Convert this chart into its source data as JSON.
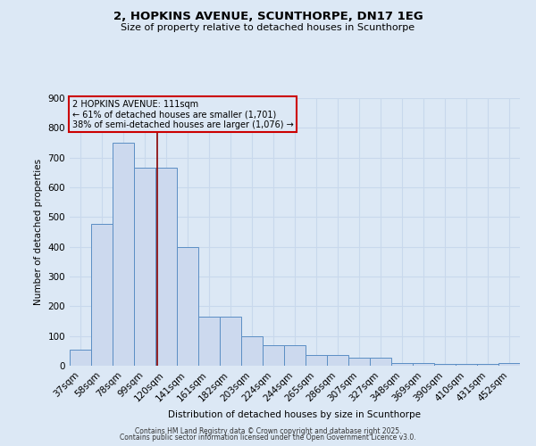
{
  "title": "2, HOPKINS AVENUE, SCUNTHORPE, DN17 1EG",
  "subtitle": "Size of property relative to detached houses in Scunthorpe",
  "xlabel": "Distribution of detached houses by size in Scunthorpe",
  "ylabel": "Number of detached properties",
  "categories": [
    "37sqm",
    "58sqm",
    "78sqm",
    "99sqm",
    "120sqm",
    "141sqm",
    "161sqm",
    "182sqm",
    "203sqm",
    "224sqm",
    "244sqm",
    "265sqm",
    "286sqm",
    "307sqm",
    "327sqm",
    "348sqm",
    "369sqm",
    "390sqm",
    "410sqm",
    "431sqm",
    "452sqm"
  ],
  "values": [
    55,
    478,
    750,
    665,
    665,
    400,
    165,
    165,
    100,
    70,
    70,
    35,
    35,
    28,
    28,
    10,
    10,
    7,
    7,
    7,
    10
  ],
  "bar_color": "#ccd9ee",
  "bar_edge_color": "#5b8ec4",
  "background_color": "#dce8f5",
  "grid_color": "#c8d8ec",
  "vline_x_index": 3.57,
  "vline_color": "#880000",
  "annotation_text": "2 HOPKINS AVENUE: 111sqm\n← 61% of detached houses are smaller (1,701)\n38% of semi-detached houses are larger (1,076) →",
  "annotation_box_color": "#cc0000",
  "ylim": [
    0,
    900
  ],
  "yticks": [
    0,
    100,
    200,
    300,
    400,
    500,
    600,
    700,
    800,
    900
  ],
  "footnote1": "Contains HM Land Registry data © Crown copyright and database right 2025.",
  "footnote2": "Contains public sector information licensed under the Open Government Licence v3.0."
}
